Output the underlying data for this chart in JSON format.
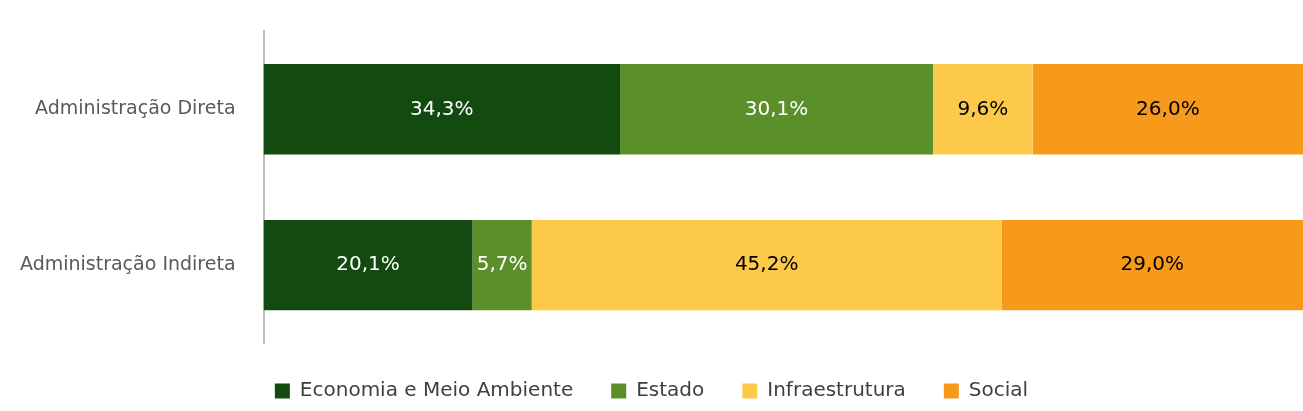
{
  "chart_data": {
    "type": "bar",
    "orientation": "horizontal",
    "stacked": true,
    "categories": [
      "Administração Direta",
      "Administração Indireta"
    ],
    "xlim": [
      0,
      100
    ],
    "tick_labels": "y",
    "grid": false,
    "legend": "bottom",
    "series": [
      {
        "name": "Economia e Meio Ambiente",
        "color": "#124a0f",
        "values": [
          34.3,
          20.1
        ],
        "value_labels": [
          "34,3%",
          "20,1%"
        ]
      },
      {
        "name": "Estado",
        "color": "#5a8f2a",
        "values": [
          30.1,
          5.7
        ],
        "value_labels": [
          "30,1%",
          "5,7%"
        ]
      },
      {
        "name": "Infraestrutura",
        "color": "#fdc94a",
        "values": [
          9.6,
          45.2
        ],
        "value_labels": [
          "9,6%",
          "45,2%"
        ]
      },
      {
        "name": "Social",
        "color": "#f7991b",
        "values": [
          26.0,
          29.0
        ],
        "value_labels": [
          "26,0%",
          "29,0%"
        ]
      }
    ]
  }
}
